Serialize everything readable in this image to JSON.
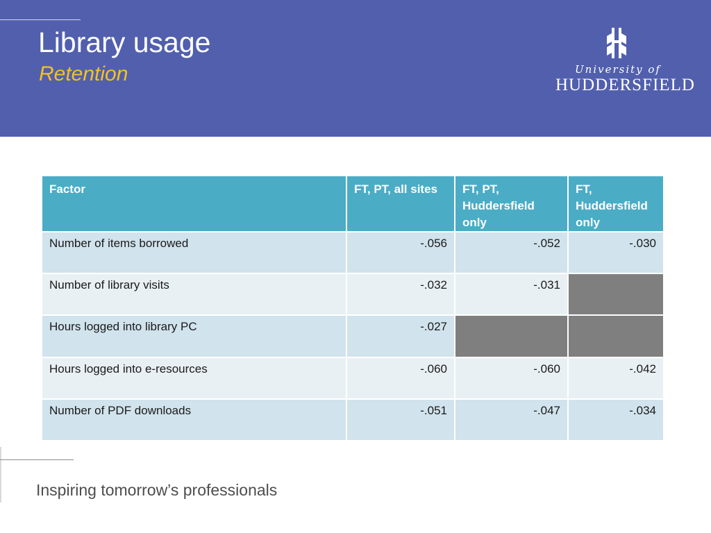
{
  "slide": {
    "title": "Library usage",
    "subtitle": "Retention"
  },
  "logo": {
    "line1": "University of",
    "line2": "Huddersfield"
  },
  "table": {
    "headers": [
      "Factor",
      "FT, PT, all sites",
      "FT, PT, Huddersfield only",
      "FT, Huddersfield only"
    ],
    "rows": [
      {
        "factor": "Number of items borrowed",
        "all_sites": "-.056",
        "pt_hudd": "-.052",
        "ft_hudd": "-.030"
      },
      {
        "factor": "Number of library visits",
        "all_sites": "-.032",
        "pt_hudd": "-.031",
        "ft_hudd": ""
      },
      {
        "factor": "Hours logged into library PC",
        "all_sites": "-.027",
        "pt_hudd": "",
        "ft_hudd": ""
      },
      {
        "factor": "Hours logged into e-resources",
        "all_sites": "-.060",
        "pt_hudd": "-.060",
        "ft_hudd": "-.042"
      },
      {
        "factor": "Number of PDF downloads",
        "all_sites": "-.051",
        "pt_hudd": "-.047",
        "ft_hudd": "-.034"
      }
    ]
  },
  "footer": {
    "tagline": "Inspiring tomorrow’s professionals"
  },
  "colors": {
    "header_bg": "#515fad",
    "subtitle": "#f3c21f",
    "table_header": "#4bacc6",
    "row_odd": "#d1e3ec",
    "row_even": "#e9f0f4",
    "blank_cell": "#7f7f7f"
  }
}
